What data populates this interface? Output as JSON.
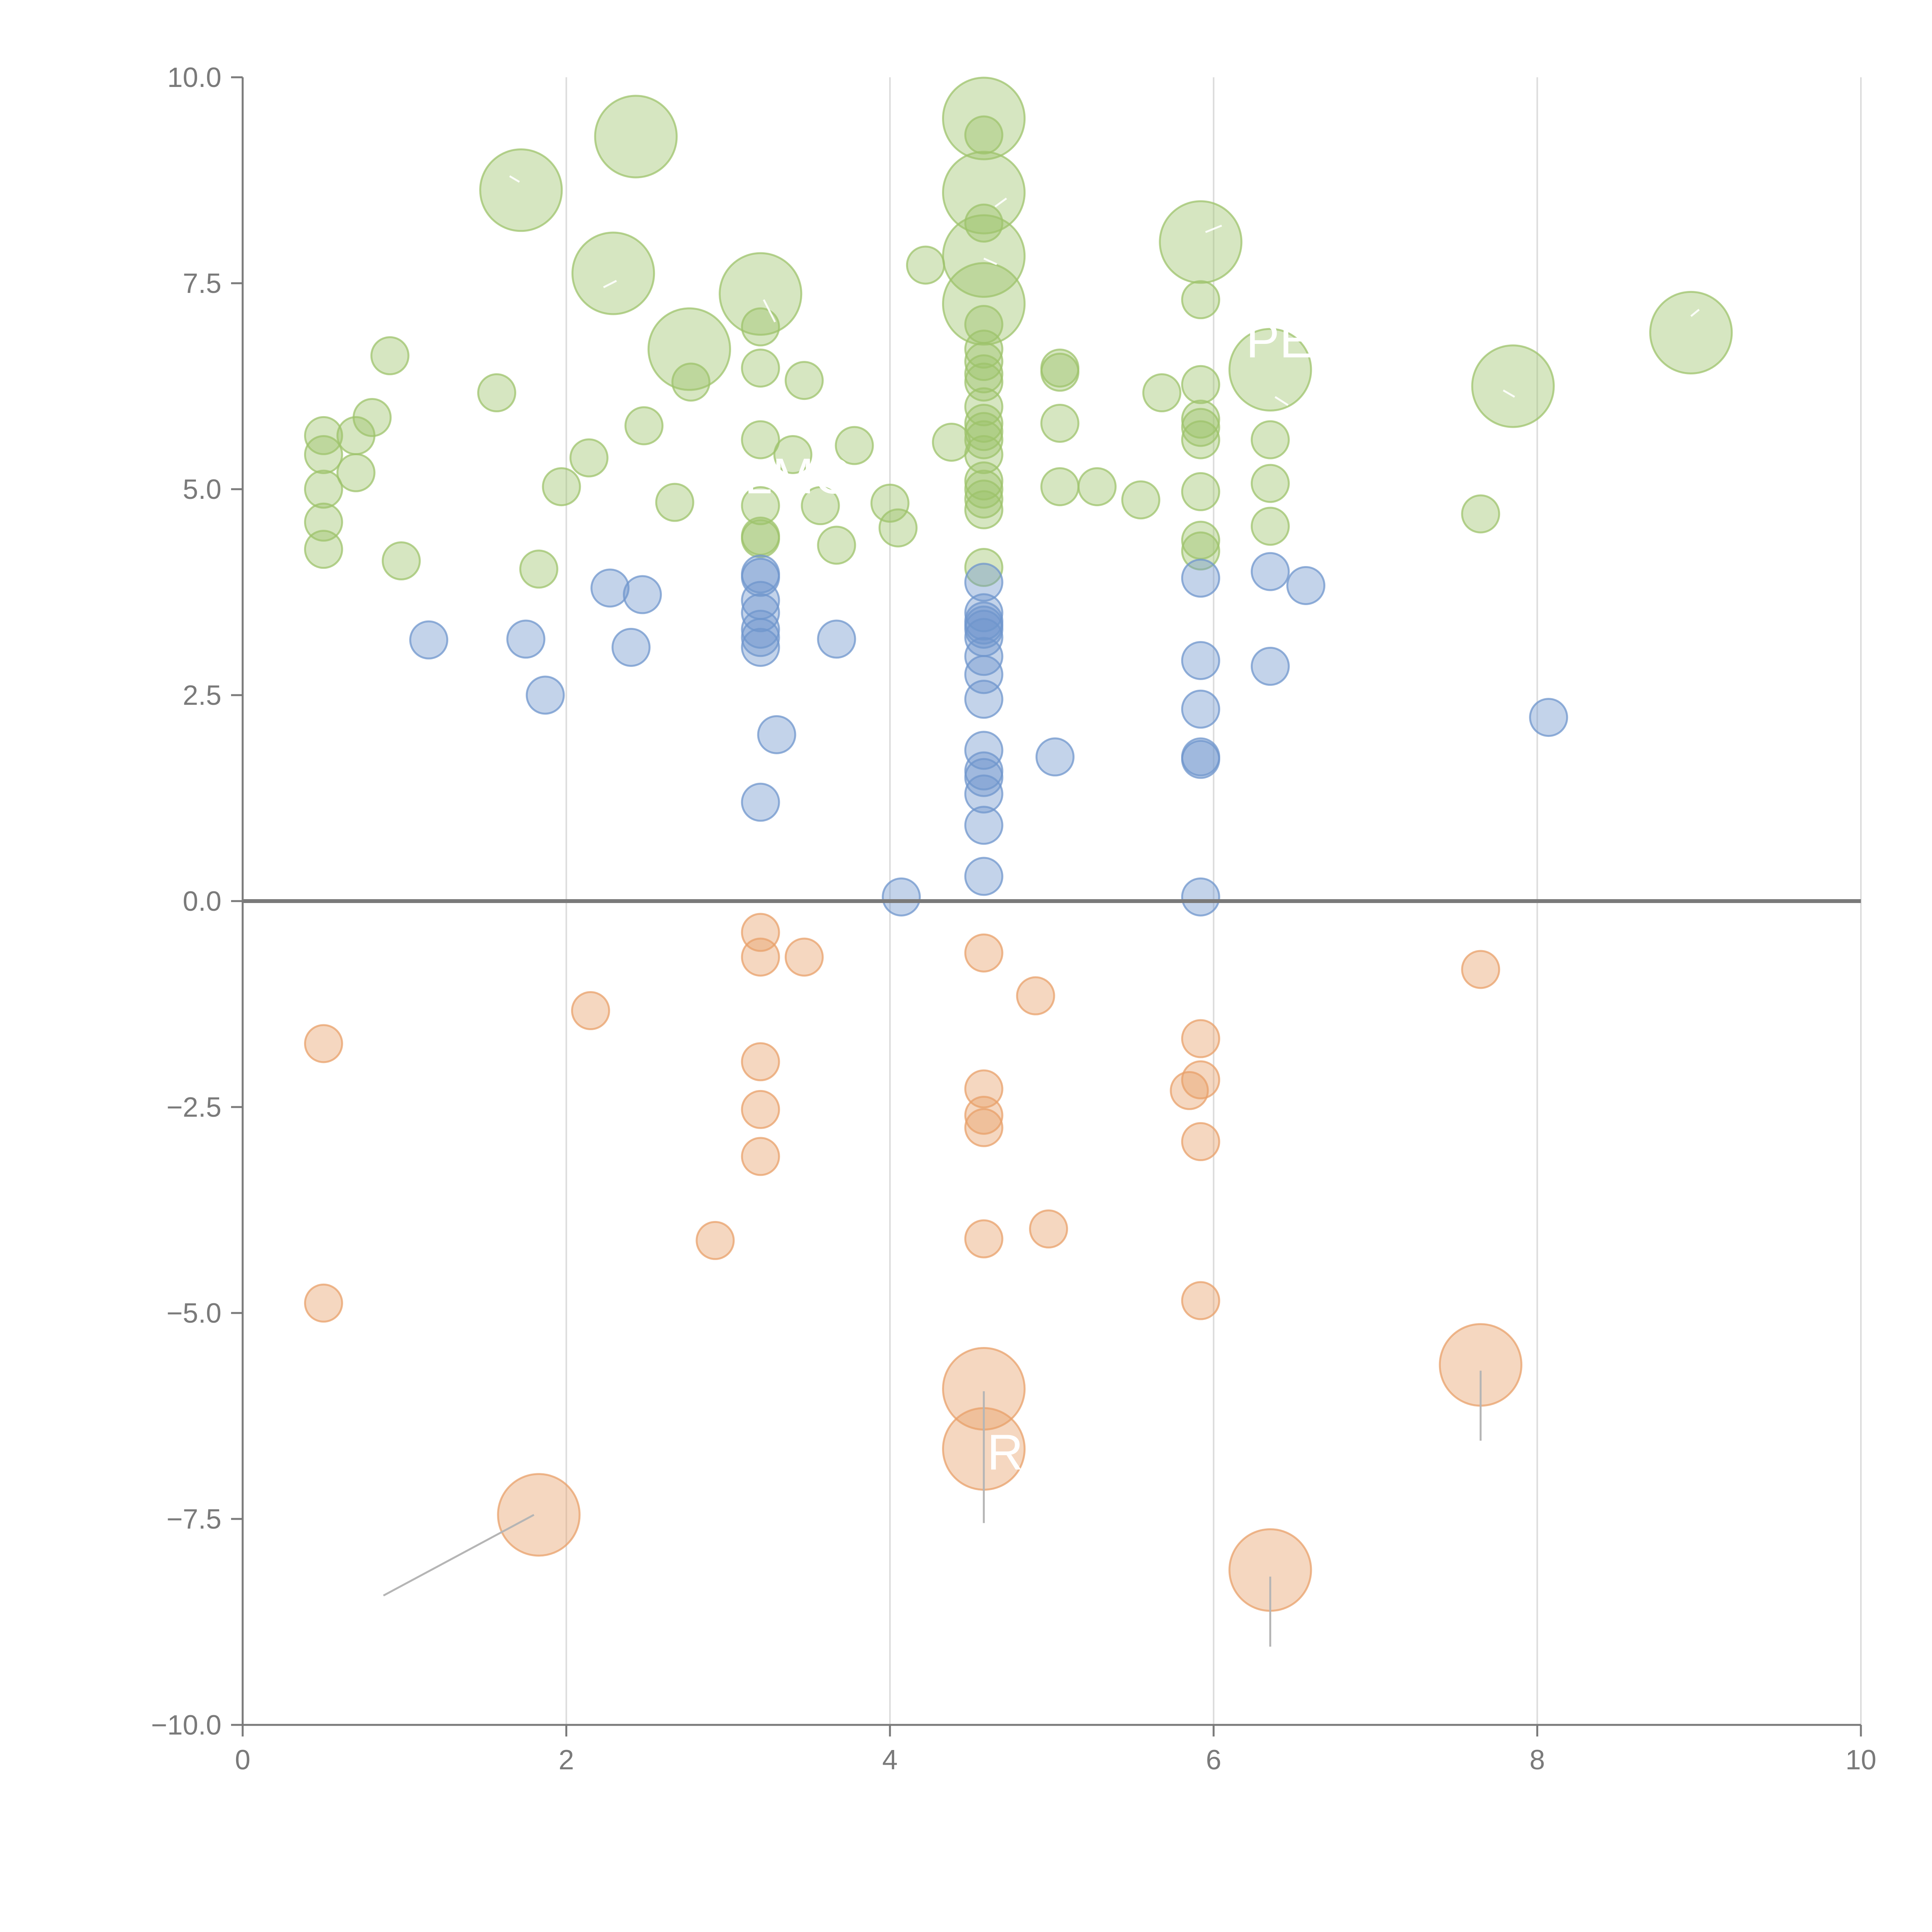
{
  "chart_data": {
    "type": "scatter",
    "variant": "bubble",
    "title": "",
    "xlabel": "",
    "ylabel": "",
    "xlim": [
      0,
      10
    ],
    "ylim": [
      -10,
      10
    ],
    "x_ticks": [
      0,
      2,
      4,
      6,
      8,
      10
    ],
    "x_tick_labels": [
      "0",
      "2",
      "4",
      "6",
      "8",
      "10"
    ],
    "y_ticks": [
      10,
      7.5,
      5,
      2.5,
      0,
      -2.5,
      -5,
      -7.5,
      -10
    ],
    "y_tick_labels": [
      "10.0",
      "7.5",
      "5.0",
      "2.5",
      "0.0",
      "−2.5",
      "−5.0",
      "−7.5",
      "−10.0"
    ],
    "vertical_grid": true,
    "horizontal_grid": false,
    "zero_line": true,
    "colors": {
      "green": "#9dc36b",
      "blue": "#6f95cc",
      "orange": "#e8a06a",
      "axis": "#7a7a7a",
      "grid": "#dcdcdc"
    },
    "series": [
      {
        "name": "green",
        "color": "#9dc36b",
        "points": [
          [
            0.5,
            5.65,
            1
          ],
          [
            0.5,
            5.42,
            1
          ],
          [
            0.5,
            5.0,
            1
          ],
          [
            0.5,
            4.6,
            1
          ],
          [
            0.5,
            4.27,
            1
          ],
          [
            0.7,
            5.65,
            1
          ],
          [
            0.7,
            5.2,
            1
          ],
          [
            0.8,
            5.87,
            1
          ],
          [
            0.91,
            6.62,
            1
          ],
          [
            0.98,
            4.13,
            1
          ],
          [
            1.57,
            6.17,
            1
          ],
          [
            1.83,
            4.03,
            1
          ],
          [
            1.97,
            5.03,
            1
          ],
          [
            2.14,
            5.38,
            1
          ],
          [
            2.48,
            5.77,
            1
          ],
          [
            2.67,
            4.84,
            1
          ],
          [
            2.77,
            6.3,
            1
          ],
          [
            3.2,
            6.97,
            1
          ],
          [
            3.2,
            6.47,
            1
          ],
          [
            3.2,
            5.6,
            1
          ],
          [
            3.2,
            4.8,
            1
          ],
          [
            3.2,
            4.4,
            1
          ],
          [
            3.2,
            4.43,
            1
          ],
          [
            3.4,
            5.42,
            1
          ],
          [
            3.47,
            6.32,
            1
          ],
          [
            3.57,
            4.8,
            1
          ],
          [
            3.67,
            4.32,
            1
          ],
          [
            3.78,
            5.53,
            1
          ],
          [
            4.0,
            4.83,
            1
          ],
          [
            4.05,
            4.53,
            1
          ],
          [
            4.22,
            7.72,
            1
          ],
          [
            4.38,
            5.57,
            1
          ],
          [
            4.58,
            9.3,
            1
          ],
          [
            4.58,
            8.23,
            1
          ],
          [
            4.58,
            7.0,
            1
          ],
          [
            4.58,
            6.7,
            1
          ],
          [
            4.58,
            6.55,
            1
          ],
          [
            4.58,
            6.4,
            1
          ],
          [
            4.58,
            6.3,
            1
          ],
          [
            4.58,
            6.0,
            1
          ],
          [
            4.58,
            5.8,
            1
          ],
          [
            4.58,
            5.7,
            1
          ],
          [
            4.58,
            5.6,
            1
          ],
          [
            4.58,
            5.42,
            1
          ],
          [
            4.58,
            5.1,
            1
          ],
          [
            4.58,
            5.0,
            1
          ],
          [
            4.58,
            4.88,
            1
          ],
          [
            4.58,
            4.75,
            1
          ],
          [
            4.58,
            4.05,
            1
          ],
          [
            5.05,
            6.47,
            1
          ],
          [
            5.05,
            6.42,
            1
          ],
          [
            5.05,
            5.8,
            1
          ],
          [
            5.05,
            5.03,
            1
          ],
          [
            5.28,
            5.03,
            1
          ],
          [
            5.55,
            4.87,
            1
          ],
          [
            5.68,
            6.17,
            1
          ],
          [
            5.92,
            7.3,
            1
          ],
          [
            5.92,
            6.27,
            1
          ],
          [
            5.92,
            5.85,
            1
          ],
          [
            5.92,
            5.75,
            1
          ],
          [
            5.92,
            5.6,
            1
          ],
          [
            5.92,
            4.97,
            1
          ],
          [
            5.92,
            4.38,
            1
          ],
          [
            5.92,
            4.25,
            1
          ],
          [
            6.35,
            5.6,
            1
          ],
          [
            6.35,
            5.07,
            1
          ],
          [
            6.35,
            4.55,
            1
          ],
          [
            7.65,
            4.7,
            1
          ],
          [
            1.72,
            8.63,
            2.2
          ],
          [
            2.43,
            9.28,
            2.2
          ],
          [
            2.29,
            7.62,
            2.2
          ],
          [
            2.76,
            6.7,
            2.2
          ],
          [
            3.2,
            7.37,
            2.2
          ],
          [
            4.58,
            9.5,
            2.2
          ],
          [
            4.58,
            8.6,
            2.2
          ],
          [
            4.58,
            7.83,
            2.2
          ],
          [
            4.58,
            7.25,
            2.2
          ],
          [
            5.92,
            8.0,
            2.2
          ],
          [
            6.35,
            6.45,
            2.2
          ],
          [
            7.85,
            6.25,
            2.2
          ],
          [
            8.95,
            6.9,
            2.2
          ]
        ]
      },
      {
        "name": "blue",
        "color": "#6f95cc",
        "points": [
          [
            1.15,
            3.17,
            1
          ],
          [
            1.75,
            3.18,
            1
          ],
          [
            1.87,
            2.5,
            1
          ],
          [
            2.27,
            3.8,
            1
          ],
          [
            2.4,
            3.08,
            1
          ],
          [
            2.47,
            3.72,
            1
          ],
          [
            3.2,
            3.97,
            1
          ],
          [
            3.2,
            3.93,
            1
          ],
          [
            3.2,
            3.65,
            1
          ],
          [
            3.2,
            3.5,
            1
          ],
          [
            3.2,
            3.3,
            1
          ],
          [
            3.2,
            3.2,
            1
          ],
          [
            3.2,
            3.08,
            1
          ],
          [
            3.2,
            1.2,
            1
          ],
          [
            3.3,
            2.02,
            1
          ],
          [
            3.67,
            3.18,
            1
          ],
          [
            4.07,
            0.05,
            1
          ],
          [
            4.58,
            3.87,
            1
          ],
          [
            4.58,
            3.5,
            1
          ],
          [
            4.58,
            3.4,
            1
          ],
          [
            4.58,
            3.35,
            1
          ],
          [
            4.58,
            3.3,
            1
          ],
          [
            4.58,
            3.2,
            1
          ],
          [
            4.58,
            2.97,
            1
          ],
          [
            4.58,
            2.75,
            1
          ],
          [
            4.58,
            2.45,
            1
          ],
          [
            4.58,
            1.83,
            1
          ],
          [
            4.58,
            1.58,
            1
          ],
          [
            4.58,
            1.5,
            1
          ],
          [
            4.58,
            1.3,
            1
          ],
          [
            4.58,
            0.92,
            1
          ],
          [
            4.58,
            0.3,
            1
          ],
          [
            5.02,
            1.75,
            1
          ],
          [
            5.92,
            3.92,
            1
          ],
          [
            5.92,
            2.92,
            1
          ],
          [
            5.92,
            2.33,
            1
          ],
          [
            5.92,
            1.75,
            1
          ],
          [
            5.92,
            1.72,
            1
          ],
          [
            5.92,
            0.05,
            1
          ],
          [
            6.35,
            4.0,
            1
          ],
          [
            6.35,
            2.85,
            1
          ],
          [
            6.57,
            3.83,
            1
          ],
          [
            8.07,
            2.23,
            1
          ]
        ]
      },
      {
        "name": "orange",
        "color": "#e8a06a",
        "points": [
          [
            0.5,
            -1.73,
            1
          ],
          [
            0.5,
            -4.88,
            1
          ],
          [
            2.15,
            -1.33,
            1
          ],
          [
            2.92,
            -4.12,
            1
          ],
          [
            3.2,
            -0.38,
            1
          ],
          [
            3.2,
            -0.68,
            1
          ],
          [
            3.2,
            -1.95,
            1
          ],
          [
            3.2,
            -2.53,
            1
          ],
          [
            3.2,
            -3.1,
            1
          ],
          [
            3.47,
            -0.68,
            1
          ],
          [
            4.58,
            -0.63,
            1
          ],
          [
            4.58,
            -2.28,
            1
          ],
          [
            4.58,
            -2.6,
            1
          ],
          [
            4.58,
            -2.75,
            1
          ],
          [
            4.58,
            -4.1,
            1
          ],
          [
            4.9,
            -1.15,
            1
          ],
          [
            4.98,
            -3.98,
            1
          ],
          [
            5.92,
            -1.67,
            1
          ],
          [
            5.92,
            -2.17,
            1
          ],
          [
            5.85,
            -2.3,
            1
          ],
          [
            5.92,
            -2.92,
            1
          ],
          [
            5.92,
            -4.85,
            1
          ],
          [
            7.65,
            -0.83,
            1
          ],
          [
            1.83,
            -7.45,
            2.2
          ],
          [
            4.58,
            -5.92,
            2.2
          ],
          [
            4.58,
            -6.65,
            2.2
          ],
          [
            6.35,
            -8.12,
            2.2
          ],
          [
            7.65,
            -5.63,
            2.2
          ]
        ]
      }
    ],
    "leader_lines": [
      [
        [
          0.87,
          -8.43
        ],
        [
          1.8,
          -7.45
        ]
      ],
      [
        [
          4.58,
          -5.95
        ],
        [
          4.58,
          -7.55
        ]
      ],
      [
        [
          6.35,
          -8.2
        ],
        [
          6.35,
          -9.05
        ]
      ],
      [
        [
          7.65,
          -5.7
        ],
        [
          7.65,
          -6.55
        ]
      ]
    ],
    "faint_segments": [
      [
        [
          1.65,
          8.8
        ],
        [
          1.71,
          8.73
        ]
      ],
      [
        [
          2.23,
          7.45
        ],
        [
          2.31,
          7.53
        ]
      ],
      [
        [
          3.22,
          7.3
        ],
        [
          3.29,
          7.03
        ]
      ],
      [
        [
          4.58,
          7.8
        ],
        [
          4.66,
          7.73
        ]
      ],
      [
        [
          4.65,
          8.43
        ],
        [
          4.72,
          8.53
        ]
      ],
      [
        [
          5.95,
          8.12
        ],
        [
          6.05,
          8.2
        ]
      ],
      [
        [
          6.38,
          6.12
        ],
        [
          6.46,
          6.02
        ]
      ],
      [
        [
          7.79,
          6.2
        ],
        [
          7.86,
          6.12
        ]
      ],
      [
        [
          8.95,
          7.1
        ],
        [
          9.0,
          7.18
        ]
      ]
    ],
    "annotations": [
      {
        "text": "PE",
        "x": 6.2,
        "y": 6.6,
        "color": "#ffffff"
      },
      {
        "text": "R",
        "x": 4.6,
        "y": -6.9,
        "color": "#ffffff"
      },
      {
        "text": "LMC",
        "x": 3.1,
        "y": 4.95,
        "color": "#ffffff"
      }
    ]
  }
}
